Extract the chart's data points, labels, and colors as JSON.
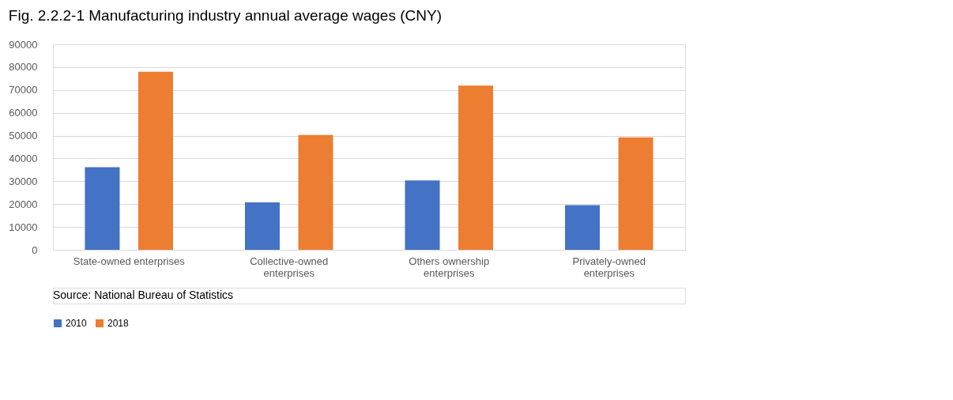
{
  "chart_data": {
    "type": "bar",
    "title": "Fig. 2.2.2-1 Manufacturing industry annual average wages (CNY)",
    "categories": [
      "State-owned enterprises",
      "Collective-owned\nenterprises",
      "Others ownership\nenterprises",
      "Privately-owned\nenterprises"
    ],
    "series": [
      {
        "name": "2010",
        "color": "#4472c4",
        "values": [
          36200,
          20800,
          30400,
          19600
        ]
      },
      {
        "name": "2018",
        "color": "#ed7d31",
        "values": [
          78000,
          50300,
          71900,
          49200
        ]
      }
    ],
    "ylim": [
      0,
      90000
    ],
    "yticks": [
      0,
      10000,
      20000,
      30000,
      40000,
      50000,
      60000,
      70000,
      80000,
      90000
    ],
    "grid": "y",
    "legend": "bottom",
    "annotations": [
      "Source: National Bureau of Statistics"
    ]
  }
}
